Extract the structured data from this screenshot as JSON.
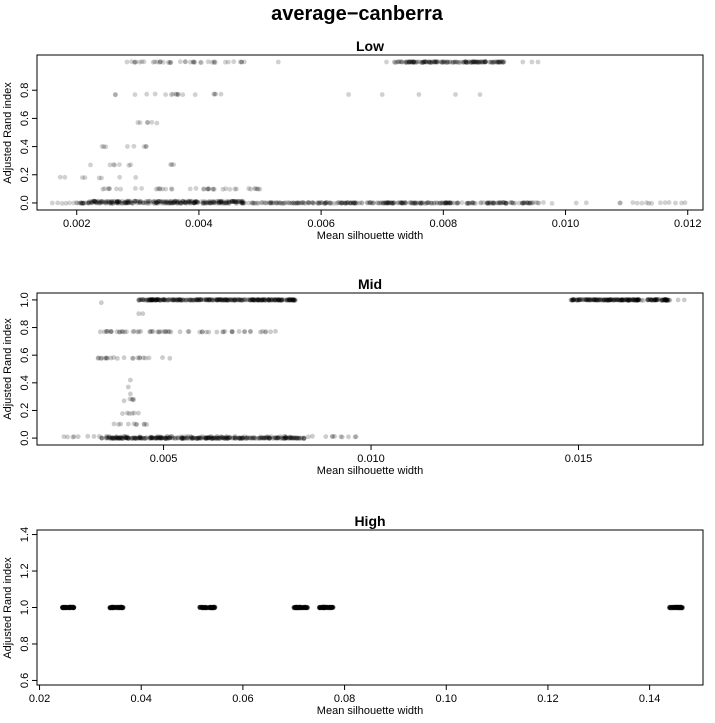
{
  "figure": {
    "title": "average−canberra"
  },
  "chart_data": [
    {
      "type": "scatter",
      "title": "Low",
      "xlabel": "Mean silhouette width",
      "ylabel": "Adjusted Rand index",
      "xlim": [
        0.00135,
        0.01225
      ],
      "ylim": [
        -0.05,
        1.05
      ],
      "xticks": [
        0.002,
        0.004,
        0.006,
        0.008,
        0.01,
        0.012
      ],
      "xtick_labels": [
        "0.002",
        "0.004",
        "0.006",
        "0.008",
        "0.010",
        "0.012"
      ],
      "yticks": [
        0.0,
        0.2,
        0.4,
        0.6,
        0.8
      ],
      "ytick_labels": [
        "0.0",
        "0.2",
        "0.4",
        "0.6",
        "0.8"
      ],
      "point_opacity": 0.18,
      "point_color": "#000000",
      "clusters": [
        {
          "y": 0.0,
          "xmin": 0.002,
          "xmax": 0.0096,
          "n": 420
        },
        {
          "y": 0.0,
          "xmin": 0.0016,
          "xmax": 0.012,
          "n": 70
        },
        {
          "y": 0.01,
          "xmin": 0.0022,
          "xmax": 0.0048,
          "n": 160
        },
        {
          "y": 0.1,
          "xmin": 0.0022,
          "xmax": 0.005,
          "n": 40
        },
        {
          "y": 1.0,
          "xmin": 0.0072,
          "xmax": 0.009,
          "n": 160
        },
        {
          "y": 1.0,
          "xmin": 0.0028,
          "xmax": 0.0048,
          "n": 40
        },
        {
          "y": 0.77,
          "xmin": 0.0026,
          "xmax": 0.0044,
          "n": 18
        },
        {
          "y": 0.57,
          "xmin": 0.0029,
          "xmax": 0.0034,
          "n": 6
        },
        {
          "y": 0.4,
          "xmin": 0.0023,
          "xmax": 0.0033,
          "n": 8
        },
        {
          "y": 0.27,
          "xmin": 0.0022,
          "xmax": 0.0037,
          "n": 10
        },
        {
          "y": 0.18,
          "xmin": 0.0017,
          "xmax": 0.003,
          "n": 8
        }
      ],
      "points": [
        [
          0.00955,
          1.0
        ],
        [
          0.00945,
          1.0
        ],
        [
          0.0093,
          1.0
        ],
        [
          0.00707,
          1.0
        ],
        [
          0.0072,
          1.0
        ],
        [
          0.00645,
          0.77
        ],
        [
          0.007,
          0.77
        ],
        [
          0.0076,
          0.77
        ],
        [
          0.0082,
          0.77
        ],
        [
          0.0086,
          0.77
        ],
        [
          0.0047,
          1.0
        ],
        [
          0.0053,
          1.0
        ],
        [
          0.00195,
          0.0
        ],
        [
          0.0016,
          0.0
        ],
        [
          0.0118,
          0.0
        ],
        [
          0.0119,
          0.0
        ]
      ]
    },
    {
      "type": "scatter",
      "title": "Mid",
      "xlabel": "Mean silhouette width",
      "ylabel": "Adjusted Rand index",
      "xlim": [
        0.00195,
        0.018
      ],
      "ylim": [
        -0.05,
        1.05
      ],
      "xticks": [
        0.005,
        0.01,
        0.015
      ],
      "xtick_labels": [
        "0.005",
        "0.010",
        "0.015"
      ],
      "yticks": [
        0.0,
        0.2,
        0.4,
        0.6,
        0.8,
        1.0
      ],
      "ytick_labels": [
        "0.0",
        "0.2",
        "0.4",
        "0.6",
        "0.8",
        "1.0"
      ],
      "point_opacity": 0.2,
      "point_color": "#000000",
      "clusters": [
        {
          "y": 1.0,
          "xmin": 0.0044,
          "xmax": 0.0082,
          "n": 320
        },
        {
          "y": 1.0,
          "xmin": 0.0148,
          "xmax": 0.0172,
          "n": 220
        },
        {
          "y": 0.0,
          "xmin": 0.0035,
          "xmax": 0.0084,
          "n": 320
        },
        {
          "y": 0.01,
          "xmin": 0.0025,
          "xmax": 0.0098,
          "n": 60
        },
        {
          "y": 0.77,
          "xmin": 0.0034,
          "xmax": 0.0078,
          "n": 60
        },
        {
          "y": 0.58,
          "xmin": 0.0033,
          "xmax": 0.0052,
          "n": 22
        },
        {
          "y": 0.1,
          "xmin": 0.0038,
          "xmax": 0.0046,
          "n": 10
        },
        {
          "y": 0.18,
          "xmin": 0.004,
          "xmax": 0.0044,
          "n": 6
        },
        {
          "y": 0.28,
          "xmin": 0.004,
          "xmax": 0.0043,
          "n": 4
        }
      ],
      "points": [
        [
          0.0042,
          0.42
        ],
        [
          0.00415,
          0.37
        ],
        [
          0.0042,
          0.32
        ],
        [
          0.00405,
          0.27
        ],
        [
          0.0044,
          0.9
        ],
        [
          0.0045,
          0.9
        ],
        [
          0.0035,
          0.98
        ],
        [
          0.0174,
          1.0
        ],
        [
          0.01755,
          1.0
        ]
      ]
    },
    {
      "type": "scatter",
      "title": "High",
      "xlabel": "Mean silhouette width",
      "ylabel": "Adjusted Rand index",
      "xlim": [
        0.0195,
        0.1505
      ],
      "ylim": [
        0.575,
        1.425
      ],
      "xticks": [
        0.02,
        0.04,
        0.06,
        0.08,
        0.1,
        0.12,
        0.14
      ],
      "xtick_labels": [
        "0.02",
        "0.04",
        "0.06",
        "0.08",
        "0.10",
        "0.12",
        "0.14"
      ],
      "yticks": [
        0.6,
        0.8,
        1.0,
        1.2,
        1.4
      ],
      "ytick_labels": [
        "0.6",
        "0.8",
        "1.0",
        "1.2",
        "1.4"
      ],
      "point_opacity": 0.35,
      "point_color": "#000000",
      "clusters": [
        {
          "y": 1.0,
          "xmin": 0.0245,
          "xmax": 0.0268,
          "n": 60
        },
        {
          "y": 1.0,
          "xmin": 0.0338,
          "xmax": 0.0365,
          "n": 60
        },
        {
          "y": 1.0,
          "xmin": 0.0515,
          "xmax": 0.0545,
          "n": 60
        },
        {
          "y": 1.0,
          "xmin": 0.07,
          "xmax": 0.0728,
          "n": 60
        },
        {
          "y": 1.0,
          "xmin": 0.075,
          "xmax": 0.0778,
          "n": 60
        },
        {
          "y": 1.0,
          "xmin": 0.1438,
          "xmax": 0.1465,
          "n": 60
        }
      ],
      "points": []
    }
  ]
}
